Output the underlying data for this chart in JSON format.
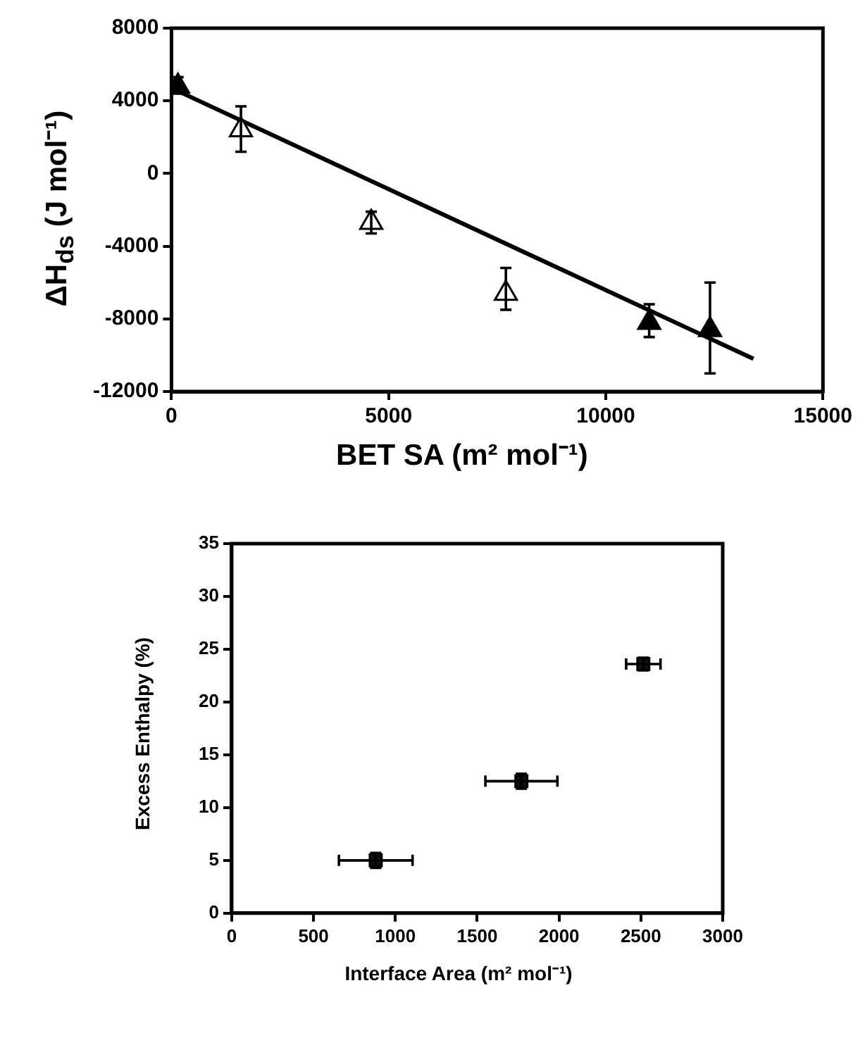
{
  "chart_data": [
    {
      "type": "scatter",
      "xlabel": "BET SA (m² mol⁻¹)",
      "ylabel": "ΔH$_{ds}$ (J mol⁻¹)",
      "xlim": [
        0,
        15000
      ],
      "xticks": [
        0,
        5000,
        10000,
        15000
      ],
      "ylim": [
        -12000,
        8000
      ],
      "yticks": [
        -12000,
        -8000,
        -4000,
        0,
        4000,
        8000
      ],
      "grid": false,
      "marker": "triangle",
      "series": [
        {
          "type": "scatter",
          "color": "#000000",
          "x": [
            150,
            11000,
            12400
          ],
          "values": [
            4800,
            -8200,
            -8600
          ],
          "errors": [
            [
              4400,
              5300
            ],
            [
              -9000,
              -7200
            ],
            [
              -11000,
              -6000
            ]
          ]
        },
        {
          "type": "scatter",
          "color": "#ffffff",
          "x": [
            1600,
            4600,
            7700
          ],
          "values": [
            2400,
            -2700,
            -6600
          ],
          "errors": [
            [
              1200,
              3700
            ],
            [
              -3300,
              -2100
            ],
            [
              -7500,
              -5200
            ]
          ]
        },
        {
          "type": "line",
          "color": "#000000",
          "marker": "none",
          "x": [
            0,
            13400
          ],
          "values": [
            4700,
            -10200
          ]
        }
      ]
    },
    {
      "type": "scatter",
      "xlabel": "Interface Area (m² mol⁻¹)",
      "ylabel": "Excess Enthalpy (%)",
      "xlim": [
        0,
        3000
      ],
      "xticks": [
        0,
        500,
        1000,
        1500,
        2000,
        2500,
        3000
      ],
      "ylim": [
        0,
        35
      ],
      "yticks": [
        0,
        5,
        10,
        15,
        20,
        25,
        30,
        35
      ],
      "grid": false,
      "marker": "square",
      "series": [
        {
          "type": "scatter",
          "color": "#111111",
          "x": [
            880,
            1770,
            2515
          ],
          "values": [
            5.0,
            12.5,
            23.6
          ],
          "errors": [
            0.7,
            0.7,
            0.6
          ],
          "xerrors": [
            225,
            220,
            105
          ]
        }
      ]
    }
  ]
}
